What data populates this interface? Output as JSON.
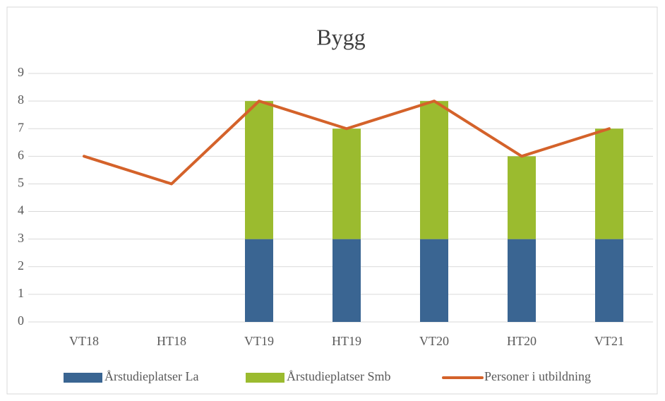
{
  "chart_data": {
    "type": "bar+line",
    "title": "Bygg",
    "categories": [
      "VT18",
      "HT18",
      "VT19",
      "HT19",
      "VT20",
      "HT20",
      "VT21"
    ],
    "series": [
      {
        "name": "Årstudieplatser La",
        "type": "bar",
        "color": "#3a6592",
        "values": [
          null,
          null,
          3,
          3,
          3,
          3,
          3
        ]
      },
      {
        "name": "Årstudieplatser Smb",
        "type": "bar",
        "color": "#9bbb2f",
        "values": [
          null,
          null,
          5,
          4,
          5,
          3,
          4
        ]
      },
      {
        "name": "Personer i utbildning",
        "type": "line",
        "color": "#d4622a",
        "values": [
          6,
          5,
          8,
          7,
          8,
          6,
          7
        ]
      }
    ],
    "stacked": true,
    "ylim": [
      0,
      9
    ],
    "yticks": [
      0,
      1,
      2,
      3,
      4,
      5,
      6,
      7,
      8,
      9
    ],
    "grid": true,
    "legend": "bottom"
  }
}
